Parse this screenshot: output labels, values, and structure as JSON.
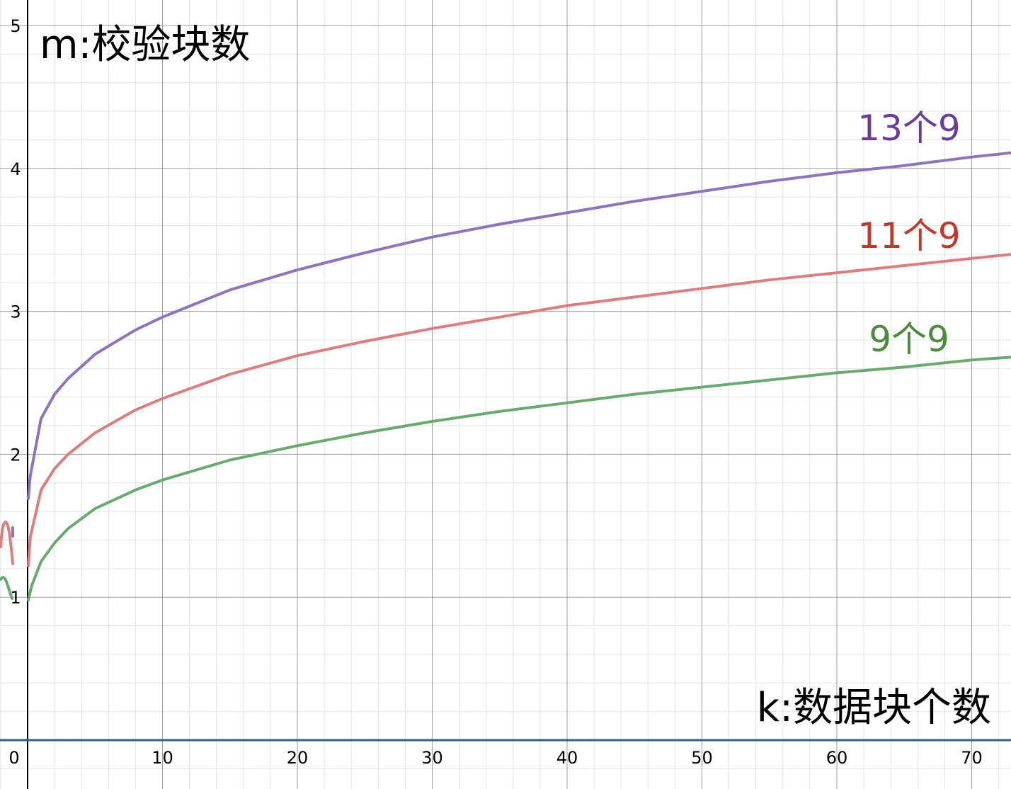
{
  "chart_data": {
    "type": "line",
    "ylabel": "m:校验块数",
    "xlabel": "k:数据块个数",
    "xlim": [
      -2,
      73
    ],
    "ylim": [
      -0.3,
      5.2
    ],
    "x_ticks": [
      "0",
      "10",
      "20",
      "30",
      "40",
      "50",
      "60",
      "70"
    ],
    "y_ticks": [
      "1",
      "2",
      "3",
      "4",
      "5"
    ],
    "grid": true,
    "series": [
      {
        "name": "13个9",
        "color": "#8e74bd",
        "label_color": "#6a3d9a",
        "points": [
          [
            0.05,
            1.69
          ],
          [
            0.2,
            1.85
          ],
          [
            1,
            2.25
          ],
          [
            2,
            2.42
          ],
          [
            3,
            2.53
          ],
          [
            5,
            2.7
          ],
          [
            8,
            2.87
          ],
          [
            10,
            2.96
          ],
          [
            15,
            3.15
          ],
          [
            20,
            3.29
          ],
          [
            25,
            3.41
          ],
          [
            30,
            3.52
          ],
          [
            35,
            3.61
          ],
          [
            40,
            3.69
          ],
          [
            45,
            3.77
          ],
          [
            50,
            3.84
          ],
          [
            55,
            3.91
          ],
          [
            60,
            3.97
          ],
          [
            65,
            4.02
          ],
          [
            70,
            4.08
          ],
          [
            73,
            4.11
          ]
        ]
      },
      {
        "name": "11个9",
        "color": "#d97f7f",
        "label_color": "#c0392b",
        "points": [
          [
            0.05,
            1.22
          ],
          [
            0.2,
            1.42
          ],
          [
            1,
            1.75
          ],
          [
            2,
            1.9
          ],
          [
            3,
            2.0
          ],
          [
            5,
            2.15
          ],
          [
            8,
            2.31
          ],
          [
            10,
            2.39
          ],
          [
            15,
            2.56
          ],
          [
            20,
            2.69
          ],
          [
            25,
            2.79
          ],
          [
            30,
            2.88
          ],
          [
            35,
            2.96
          ],
          [
            40,
            3.04
          ],
          [
            45,
            3.1
          ],
          [
            50,
            3.16
          ],
          [
            55,
            3.22
          ],
          [
            60,
            3.27
          ],
          [
            65,
            3.32
          ],
          [
            70,
            3.37
          ],
          [
            73,
            3.4
          ]
        ]
      },
      {
        "name": "9个9",
        "color": "#6aaa70",
        "label_color": "#4e8a3e",
        "points": [
          [
            0.05,
            0.98
          ],
          [
            0.3,
            1.08
          ],
          [
            1,
            1.25
          ],
          [
            2,
            1.38
          ],
          [
            3,
            1.48
          ],
          [
            5,
            1.62
          ],
          [
            8,
            1.75
          ],
          [
            10,
            1.82
          ],
          [
            15,
            1.96
          ],
          [
            20,
            2.06
          ],
          [
            25,
            2.15
          ],
          [
            30,
            2.23
          ],
          [
            35,
            2.3
          ],
          [
            40,
            2.36
          ],
          [
            45,
            2.42
          ],
          [
            50,
            2.47
          ],
          [
            55,
            2.52
          ],
          [
            60,
            2.57
          ],
          [
            65,
            2.61
          ],
          [
            70,
            2.66
          ],
          [
            73,
            2.68
          ]
        ]
      }
    ]
  }
}
